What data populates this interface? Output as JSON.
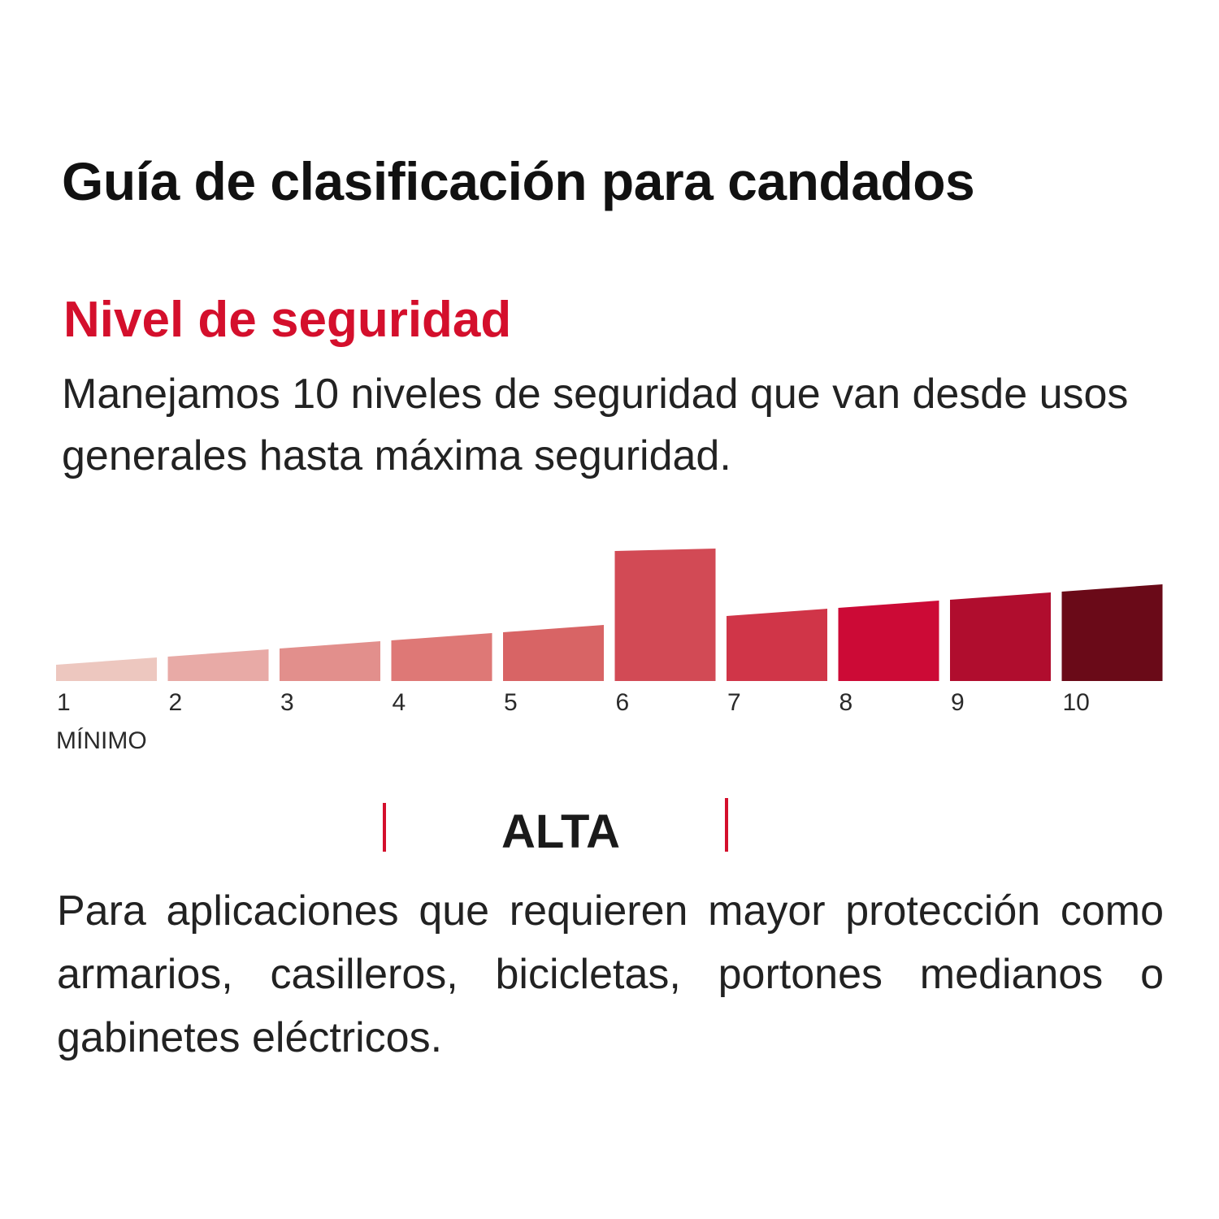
{
  "header": {
    "title": "Guía de clasificación para candados"
  },
  "section": {
    "subtitle": "Nivel de seguridad",
    "intro": "Manejamos 10 niveles de seguridad que van desde usos generales hasta máxima seguridad."
  },
  "scale": {
    "min_label": "MÍNIMO",
    "levels": [
      {
        "label": "1",
        "value": 1,
        "color": "#edc7bf"
      },
      {
        "label": "2",
        "value": 2,
        "color": "#e8aaa6"
      },
      {
        "label": "3",
        "value": 3,
        "color": "#e28f8c"
      },
      {
        "label": "4",
        "value": 4,
        "color": "#de7876"
      },
      {
        "label": "5",
        "value": 5,
        "color": "#d86465"
      },
      {
        "label": "6",
        "value": 6,
        "color": "#d24a55",
        "highlighted": true
      },
      {
        "label": "7",
        "value": 7,
        "color": "#d03548"
      },
      {
        "label": "8",
        "value": 8,
        "color": "#cc0a36"
      },
      {
        "label": "9",
        "value": 9,
        "color": "#b00d2e"
      },
      {
        "label": "10",
        "value": 10,
        "color": "#6a0a18"
      }
    ]
  },
  "selected_level": {
    "label": "ALTA",
    "marker_color": "#d40f2c"
  },
  "description": "Para aplicaciones que requieren mayor protección como armarios, casilleros, bicicletas, portones medianos o gabinetes eléctricos."
}
